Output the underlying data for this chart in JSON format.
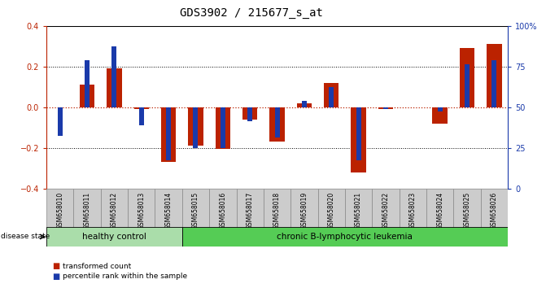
{
  "title": "GDS3902 / 215677_s_at",
  "samples": [
    "GSM658010",
    "GSM658011",
    "GSM658012",
    "GSM658013",
    "GSM658014",
    "GSM658015",
    "GSM658016",
    "GSM658017",
    "GSM658018",
    "GSM658019",
    "GSM658020",
    "GSM658021",
    "GSM658022",
    "GSM658023",
    "GSM658024",
    "GSM658025",
    "GSM658026"
  ],
  "red_values": [
    0.0,
    0.11,
    0.19,
    -0.01,
    -0.27,
    -0.19,
    -0.205,
    -0.06,
    -0.17,
    0.02,
    0.12,
    -0.32,
    -0.01,
    0.0,
    -0.08,
    0.29,
    0.31
  ],
  "blue_values": [
    -0.14,
    0.23,
    0.3,
    -0.09,
    -0.26,
    -0.2,
    -0.2,
    -0.07,
    -0.15,
    0.03,
    0.1,
    -0.26,
    -0.01,
    0.0,
    -0.02,
    0.21,
    0.23
  ],
  "healthy_count": 5,
  "disease_label": "disease state",
  "group1_label": "healthy control",
  "group2_label": "chronic B-lymphocytic leukemia",
  "legend1": "transformed count",
  "legend2": "percentile rank within the sample",
  "ylim": [
    -0.4,
    0.4
  ],
  "yticks_left": [
    -0.4,
    -0.2,
    0.0,
    0.2,
    0.4
  ],
  "right_tick_vals": [
    0,
    25,
    50,
    75,
    100
  ],
  "right_ylabels": [
    "0",
    "25",
    "50",
    "75",
    "100%"
  ],
  "bar_color_red": "#bb2200",
  "bar_color_blue": "#1a3aaa",
  "group1_color": "#aaddaa",
  "group2_color": "#55cc55",
  "bg_color": "#ffffff",
  "red_bar_width": 0.55,
  "blue_bar_width": 0.18
}
